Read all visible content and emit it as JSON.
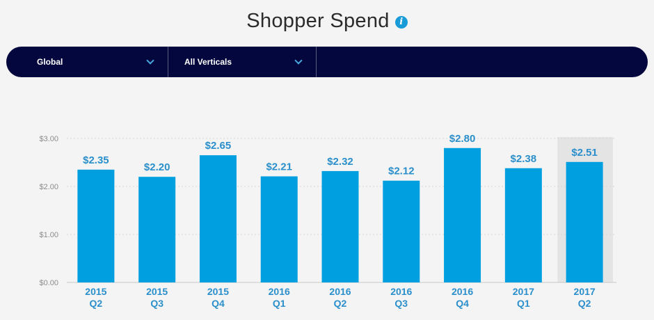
{
  "header": {
    "title": "Shopper Spend",
    "info_glyph": "i"
  },
  "filters": {
    "region": "Global",
    "vertical": "All Verticals"
  },
  "colors": {
    "bar": "#009fe0",
    "label": "#2a8fcb",
    "axis_text": "#8c8c8c",
    "highlight_bg": "#e4e4e4",
    "bar_bg": "#03073d"
  },
  "chart_data": {
    "type": "bar",
    "categories": [
      [
        "2015",
        "Q2"
      ],
      [
        "2015",
        "Q3"
      ],
      [
        "2015",
        "Q4"
      ],
      [
        "2016",
        "Q1"
      ],
      [
        "2016",
        "Q2"
      ],
      [
        "2016",
        "Q3"
      ],
      [
        "2016",
        "Q4"
      ],
      [
        "2017",
        "Q1"
      ],
      [
        "2017",
        "Q2"
      ]
    ],
    "values": [
      2.35,
      2.2,
      2.65,
      2.21,
      2.32,
      2.12,
      2.8,
      2.38,
      2.51
    ],
    "value_labels": [
      "$2.35",
      "$2.20",
      "$2.65",
      "$2.21",
      "$2.32",
      "$2.12",
      "$2.80",
      "$2.38",
      "$2.51"
    ],
    "yticks": [
      0,
      1,
      2,
      3
    ],
    "ytick_labels": [
      "$0.00",
      "$1.00",
      "$2.00",
      "$3.00"
    ],
    "ylim": [
      0,
      3
    ],
    "highlighted_index": 8,
    "grid": true,
    "title": "",
    "xlabel": "",
    "ylabel": ""
  }
}
